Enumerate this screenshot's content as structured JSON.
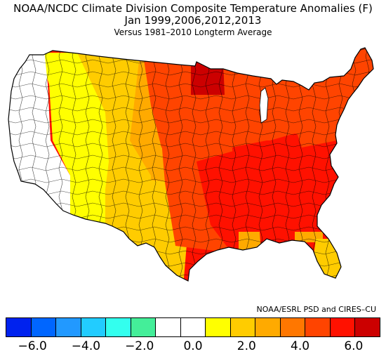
{
  "title": {
    "line1": "NOAA/NCDC Climate Division Composite Temperature Anomalies (F)",
    "line2": "Jan   1999,2006,2012,2013",
    "line3": "Versus 1981–2010 Longterm Average"
  },
  "credit": "NOAA/ESRL PSD and CIRES–CU",
  "colors": {
    "bins": [
      "#0022ee",
      "#0066ff",
      "#2299ff",
      "#22ccff",
      "#33ffee",
      "#44ee99",
      "#ffffff",
      "#ffffff",
      "#ffff00",
      "#ffcc00",
      "#ffaa00",
      "#ff7700",
      "#ff4400",
      "#ff1100",
      "#cc0000"
    ],
    "outline": "#000000"
  },
  "legend": {
    "tick_labels": [
      "−6.0",
      "−4.0",
      "−2.0",
      "0.0",
      "2.0",
      "4.0",
      "6.0"
    ],
    "tick_values": [
      -6,
      -4,
      -2,
      0,
      2,
      4,
      6
    ],
    "range": [
      -7,
      7
    ]
  },
  "map": {
    "regions": [
      {
        "name": "pacific-northwest-coast",
        "anomaly_bin": 7
      },
      {
        "name": "california-nevada",
        "anomaly_bin": 6
      },
      {
        "name": "idaho-utah-arizona",
        "anomaly_bin": 8
      },
      {
        "name": "montana-wyoming-colorado-newmexico",
        "anomaly_bin": 9
      },
      {
        "name": "great-plains",
        "anomaly_bin": 10
      },
      {
        "name": "texas-west",
        "anomaly_bin": 9
      },
      {
        "name": "upper-midwest",
        "anomaly_bin": 12
      },
      {
        "name": "northern-minnesota",
        "anomaly_bin": 14
      },
      {
        "name": "central-plains-missouri",
        "anomaly_bin": 12
      },
      {
        "name": "ohio-tennessee-valley",
        "anomaly_bin": 13
      },
      {
        "name": "southeast",
        "anomaly_bin": 13
      },
      {
        "name": "northeast",
        "anomaly_bin": 12
      },
      {
        "name": "florida-peninsula",
        "anomaly_bin": 9
      },
      {
        "name": "gulf-coast-louisiana",
        "anomaly_bin": 10
      }
    ]
  }
}
